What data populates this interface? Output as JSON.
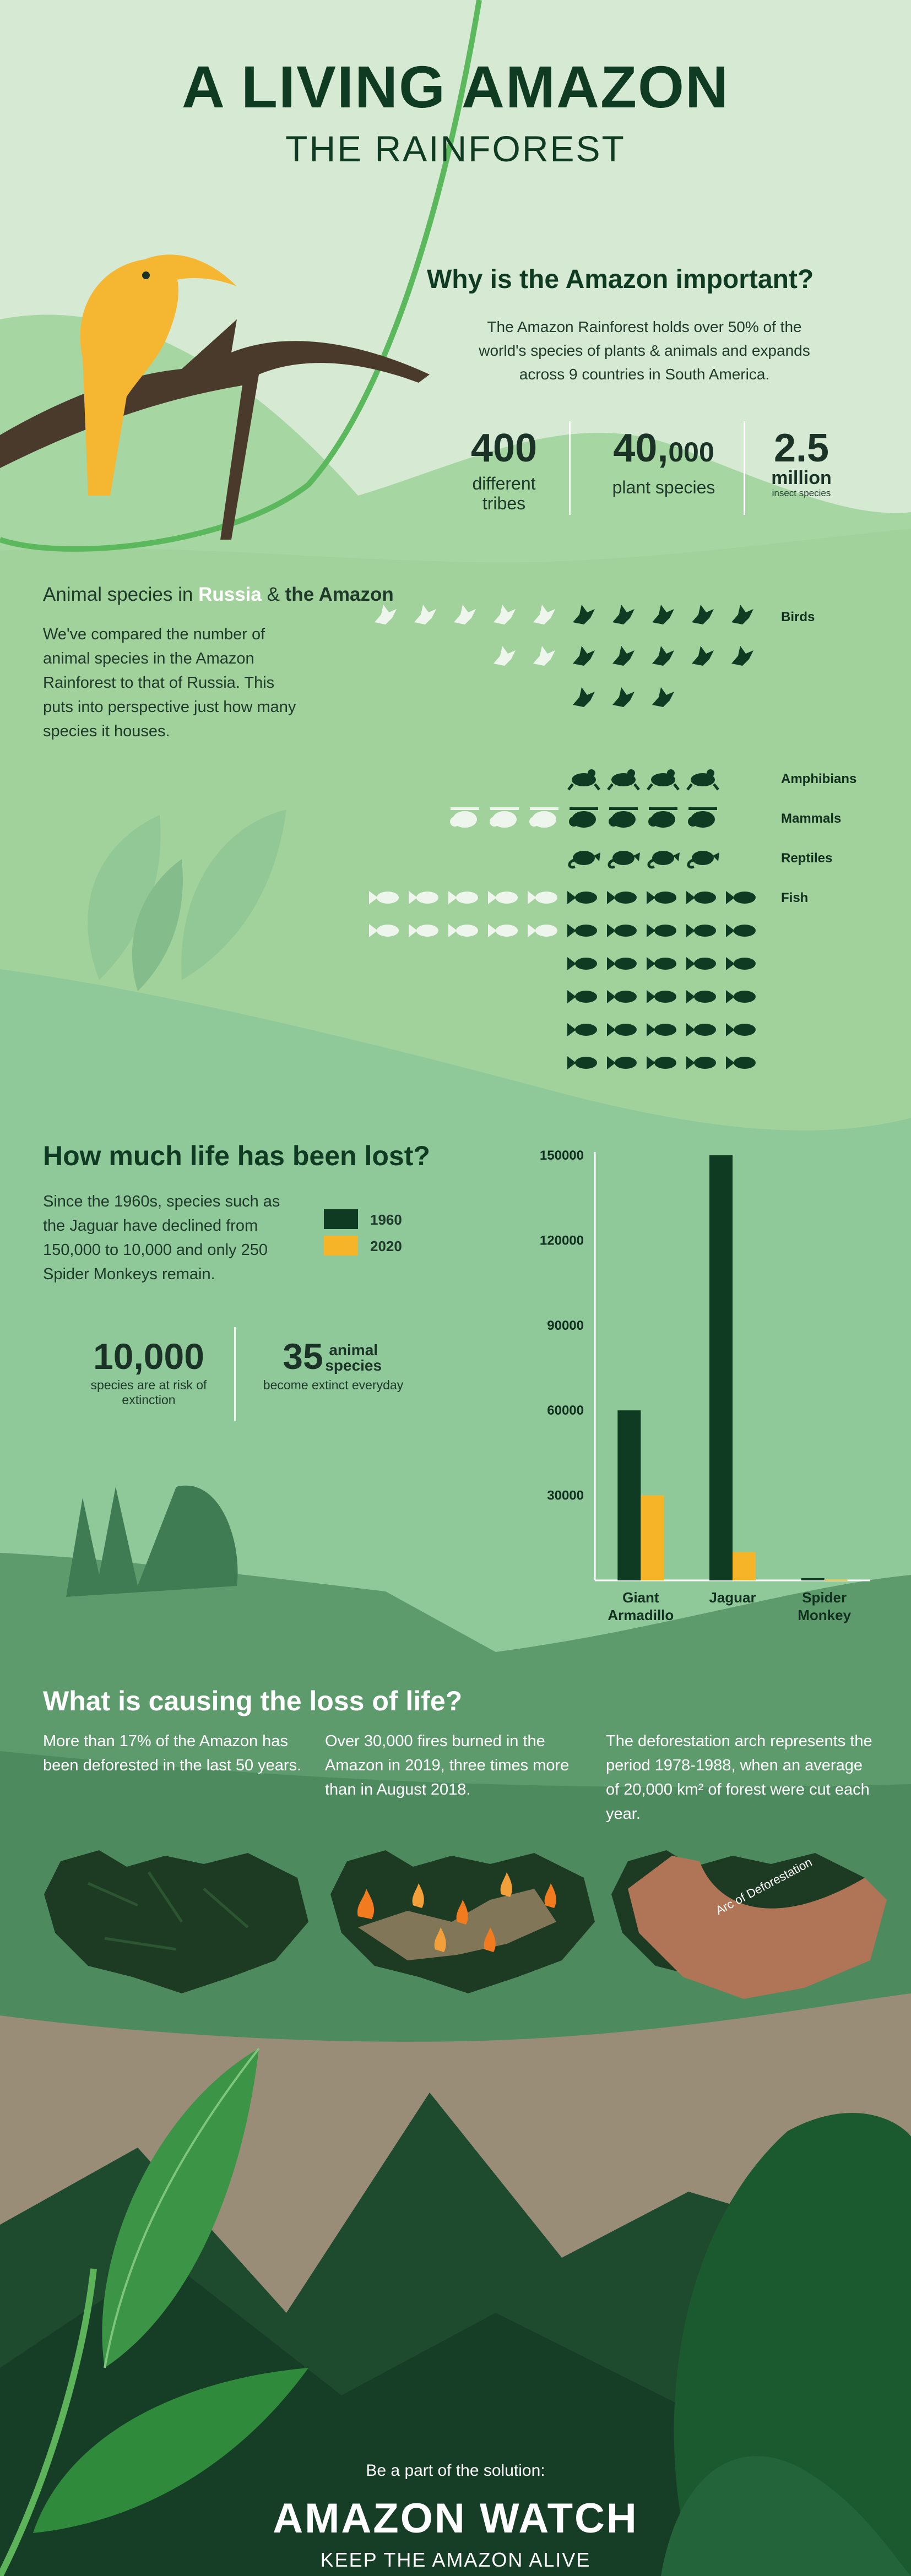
{
  "header": {
    "title": "A LIVING AMAZON",
    "subtitle": "THE RAINFOREST"
  },
  "importance": {
    "heading": "Why is the Amazon important?",
    "body": "The Amazon Rainforest holds over 50% of the world's species of plants & animals and expands across 9 countries in South America.",
    "stats": [
      {
        "value": "400",
        "unit": "",
        "label": "different tribes"
      },
      {
        "value": "40,",
        "unit": "000",
        "label": "plant species"
      },
      {
        "value": "2.5",
        "unit": "million",
        "label": "insect species"
      }
    ]
  },
  "species": {
    "heading_prefix": "Animal species in ",
    "heading_russia": "Russia",
    "heading_amp": " & ",
    "heading_amazon": "the Amazon",
    "body": "We've compared the number of animal species in the Amazon Rainforest to that of Russia. This puts into perspective just how many species it houses.",
    "categories": [
      {
        "name": "Birds",
        "russia": 7,
        "amazon": 13,
        "icon": "bird-icon"
      },
      {
        "name": "Amphibians",
        "russia": 0,
        "amazon": 4,
        "icon": "frog-icon"
      },
      {
        "name": "Mammals",
        "russia": 3,
        "amazon": 4,
        "icon": "sloth-icon"
      },
      {
        "name": "Reptiles",
        "russia": 0,
        "amazon": 4,
        "icon": "chameleon-icon"
      },
      {
        "name": "Fish",
        "russia": 10,
        "amazon": 30,
        "icon": "fish-icon"
      }
    ],
    "colors": {
      "russia": "#eef5ec",
      "amazon": "#0f3b22"
    }
  },
  "life_lost": {
    "heading": "How much life has been lost?",
    "body": "Since the 1960s, species such as the Jaguar have declined from 150,000 to 10,000 and only 250 Spider Monkeys remain.",
    "legend": [
      {
        "label": "1960",
        "color": "#0f3b22"
      },
      {
        "label": "2020",
        "color": "#f6b529"
      }
    ],
    "stat1_value": "10,000",
    "stat1_label": "species are at risk of extinction",
    "stat2_value": "35",
    "stat2_unit": "animal species",
    "stat2_label": "become extinct everyday"
  },
  "chart_data": {
    "type": "bar",
    "categories": [
      "Giant Armadillo",
      "Jaguar",
      "Spider Monkey"
    ],
    "series": [
      {
        "name": "1960",
        "values": [
          60000,
          150000,
          800
        ]
      },
      {
        "name": "2020",
        "values": [
          30000,
          10000,
          250
        ]
      }
    ],
    "ylim": [
      0,
      150000
    ],
    "yticks": [
      "150000",
      "120000",
      "90000",
      "60000",
      "30000"
    ],
    "ytick_values": [
      150000,
      120000,
      90000,
      60000,
      30000
    ],
    "colors": [
      "#0f3b22",
      "#f6b529"
    ],
    "grid": false,
    "legend": "left"
  },
  "causes": {
    "heading": "What is causing the loss of life?",
    "columns": [
      "More than 17% of the Amazon has been deforested in the last 50 years.",
      "Over 30,000 fires burned in the Amazon in 2019, three times more than in August 2018.",
      "The deforestation arch represents the period 1978-1988, when an average of 20,000 km² of forest were cut each year."
    ],
    "arc_label": "Arc of Deforestation"
  },
  "footer": {
    "cta": "Be a part of the solution:",
    "brand": "AMAZON WATCH",
    "tagline": "KEEP THE AMAZON ALIVE"
  }
}
